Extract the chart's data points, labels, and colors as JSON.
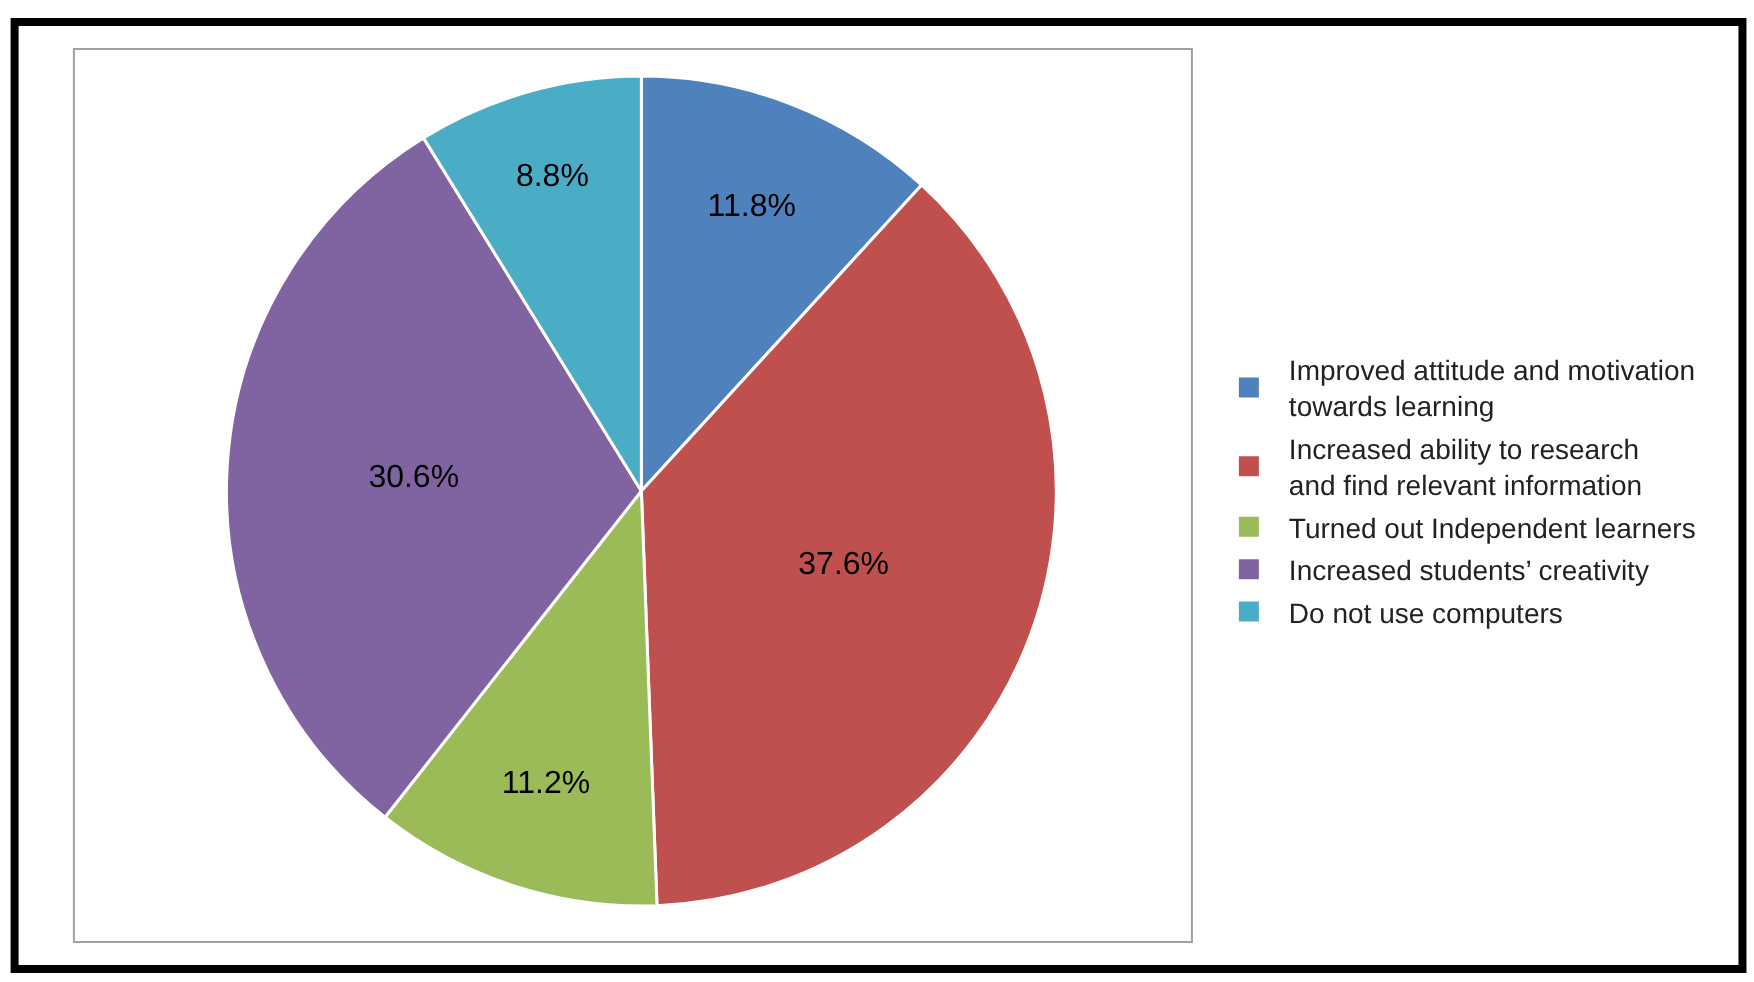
{
  "chart_data": {
    "type": "pie",
    "categories": [
      "Improved attitude and motivation towards learning",
      "Increased ability to research and find relevant information",
      "Turned out Independent learners",
      "Increased students’ creativity",
      "Do not use computers"
    ],
    "values": [
      11.8,
      37.6,
      11.2,
      30.6,
      8.8
    ],
    "value_labels": [
      "11.8%",
      "37.6%",
      "11.2%",
      "30.6%",
      "8.8%"
    ],
    "colors": [
      "#4f81bd",
      "#c0504d",
      "#9bbb59",
      "#8064a2",
      "#4bacc6"
    ],
    "legend": "right"
  }
}
